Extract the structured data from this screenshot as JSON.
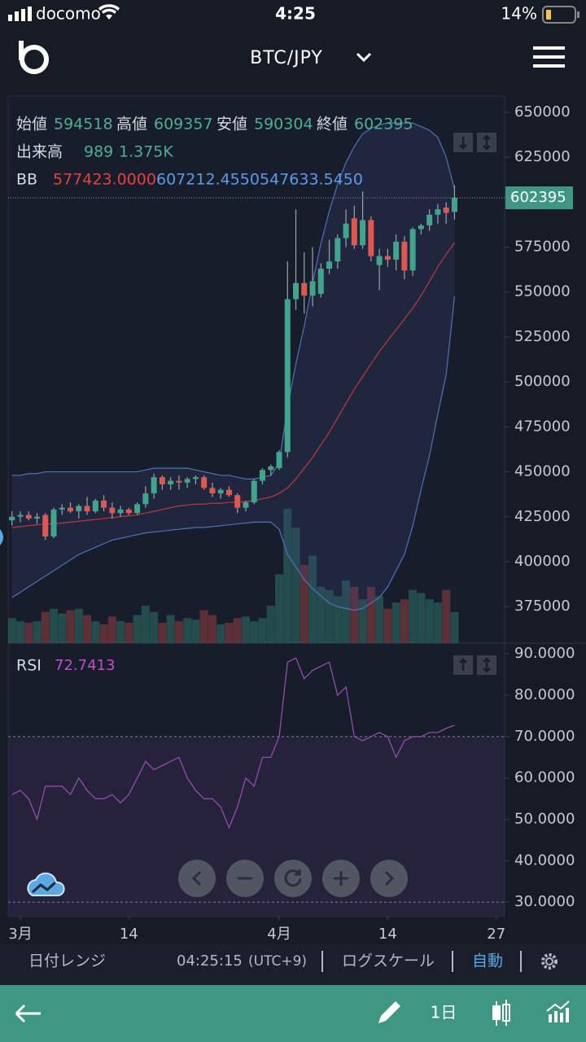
{
  "status_bar": {
    "carrier": "docomo",
    "time": "4:25",
    "battery": "14%"
  },
  "header": {
    "pair": "BTC/JPY"
  },
  "chart_data": [
    {
      "type": "candlestick",
      "open_label": "始値",
      "high_label": "高値",
      "low_label": "安値",
      "close_label": "終値",
      "volume_label": "出来高",
      "volume_ma": "1.375K",
      "bb_label": "BB",
      "up_color": "#3fa58d",
      "down_color": "#e0574f",
      "xlim": [
        -0.46,
        59.0
      ],
      "xticks": [
        {
          "value": 1,
          "label": "3月"
        },
        {
          "value": 14,
          "label": "14"
        },
        {
          "value": 32,
          "label": "4月"
        },
        {
          "value": 45,
          "label": "14"
        },
        {
          "value": 58,
          "label": "27"
        }
      ],
      "ylim": [
        354700,
        659000
      ],
      "yticks": [
        650000,
        625000,
        600000,
        575000,
        550000,
        525000,
        500000,
        475000,
        450000,
        425000,
        400000,
        375000
      ],
      "volume_ylim": [
        0,
        17500
      ],
      "open": [
        423000,
        425000,
        426000,
        424000,
        426000,
        414000,
        429000,
        430000,
        428000,
        431000,
        428000,
        434000,
        430000,
        427000,
        429000,
        427000,
        432000,
        438000,
        447000,
        443000,
        445000,
        444000,
        446000,
        447000,
        441000,
        438000,
        440000,
        437000,
        430000,
        433000,
        445000,
        451000,
        452000,
        461000,
        546000,
        555000,
        548000,
        549000,
        563000,
        567000,
        580000,
        591000,
        576000,
        590000,
        565000,
        570000,
        568000,
        578000,
        562000,
        585000,
        587000,
        593000,
        597000,
        594518
      ],
      "high": [
        428000,
        428000,
        428000,
        427000,
        427000,
        430000,
        432000,
        433000,
        432000,
        436000,
        435000,
        437000,
        433000,
        431000,
        430000,
        433000,
        442000,
        449000,
        448000,
        447000,
        448000,
        447000,
        448000,
        448000,
        444000,
        441000,
        442000,
        438000,
        434000,
        446000,
        452000,
        454000,
        462000,
        567000,
        596000,
        572000,
        575000,
        566000,
        579000,
        582000,
        596000,
        598000,
        606000,
        592000,
        574000,
        574000,
        582000,
        581000,
        586000,
        588000,
        596000,
        599000,
        600000,
        609357
      ],
      "low": [
        420000,
        422000,
        423000,
        421000,
        412000,
        413000,
        426000,
        427000,
        424000,
        426000,
        427000,
        428000,
        424000,
        425000,
        426000,
        426000,
        430000,
        435000,
        440000,
        440000,
        440000,
        441000,
        443000,
        440000,
        436000,
        435000,
        436000,
        427000,
        428000,
        432000,
        443000,
        448000,
        451000,
        458000,
        540000,
        538000,
        542000,
        547000,
        560000,
        563000,
        575000,
        574000,
        574000,
        567000,
        551000,
        564000,
        562000,
        557000,
        559000,
        582000,
        584000,
        588000,
        588000,
        590304
      ],
      "close": [
        425000,
        426000,
        424000,
        425000,
        414000,
        429000,
        430000,
        428000,
        431000,
        428000,
        434000,
        430000,
        427000,
        429000,
        427000,
        432000,
        438000,
        447000,
        443000,
        445000,
        444000,
        446000,
        447000,
        441000,
        438000,
        440000,
        437000,
        430000,
        433000,
        445000,
        451000,
        453000,
        461000,
        546000,
        555000,
        548000,
        556000,
        563000,
        567000,
        580000,
        588000,
        576000,
        590000,
        570000,
        570000,
        568000,
        578000,
        562000,
        585000,
        587000,
        593000,
        596000,
        594000,
        602395
      ],
      "volume": [
        800,
        700,
        650,
        700,
        1000,
        1100,
        950,
        1050,
        1100,
        900,
        700,
        600,
        850,
        700,
        650,
        900,
        1200,
        1000,
        650,
        900,
        700,
        800,
        750,
        1050,
        900,
        600,
        650,
        800,
        850,
        700,
        800,
        1200,
        2200,
        4300,
        3700,
        2500,
        2800,
        1800,
        1700,
        1500,
        2000,
        1800,
        1400,
        1800,
        1500,
        1100,
        1300,
        1400,
        1700,
        1600,
        1400,
        1300,
        1700,
        989
      ],
      "bb_middle": {
        "color": "#c0393b",
        "last_value_label": "577423.0000",
        "values": [
          419000,
          419500,
          420000,
          420500,
          421000,
          421000,
          421500,
          422000,
          422500,
          423000,
          423500,
          424000,
          424500,
          425000,
          425500,
          426000,
          427000,
          428000,
          429000,
          430000,
          431000,
          431500,
          432000,
          432000,
          432500,
          432500,
          433000,
          433000,
          433500,
          434000,
          435000,
          436000,
          438000,
          441000,
          446000,
          452000,
          458000,
          465000,
          472000,
          480000,
          488000,
          496000,
          503000,
          510000,
          517000,
          523000,
          529000,
          535000,
          541000,
          548000,
          556000,
          564000,
          571000,
          577423
        ]
      },
      "bb_upper": {
        "color": "#4d73b8",
        "last_value_label": "607212.4550",
        "values": [
          448000,
          448000,
          449000,
          449000,
          450000,
          450000,
          450000,
          450000,
          450000,
          450000,
          450000,
          450000,
          450000,
          450000,
          450000,
          450000,
          451000,
          452000,
          452000,
          452000,
          452000,
          452000,
          451000,
          450000,
          449000,
          448000,
          448000,
          447000,
          446000,
          446000,
          447000,
          448000,
          455000,
          486000,
          510000,
          531000,
          555000,
          577000,
          595000,
          610000,
          622000,
          631000,
          638000,
          641000,
          643000,
          644000,
          644000,
          644000,
          644000,
          642000,
          640000,
          636000,
          625000,
          607212.455
        ]
      },
      "bb_lower": {
        "color": "#4d73b8",
        "last_value_label": "547633.5450",
        "values": [
          380000,
          383000,
          386000,
          389000,
          392000,
          395000,
          398000,
          401000,
          404000,
          406000,
          408000,
          410000,
          412000,
          413000,
          414000,
          415000,
          416000,
          416500,
          417000,
          417500,
          418000,
          418500,
          419000,
          419000,
          419500,
          420000,
          420500,
          421000,
          421500,
          422000,
          422000,
          422000,
          418000,
          404000,
          397000,
          390000,
          385000,
          381000,
          377000,
          375000,
          374000,
          373000,
          374000,
          377000,
          380000,
          386000,
          395000,
          404000,
          420000,
          440000,
          459000,
          482000,
          504000,
          547633.545
        ]
      }
    },
    {
      "type": "line",
      "name": "RSI",
      "color": "#9c4fb8",
      "last_value_label": "72.7413",
      "ylim": [
        26.7,
        92.6
      ],
      "overbought": 70,
      "oversold": 30,
      "yticks": [
        {
          "value": 90,
          "label": "90.0000"
        },
        {
          "value": 80,
          "label": "80.0000"
        },
        {
          "value": 70,
          "label": "70.0000"
        },
        {
          "value": 60,
          "label": "60.0000"
        },
        {
          "value": 50,
          "label": "50.0000"
        },
        {
          "value": 40,
          "label": "40.0000"
        },
        {
          "value": 30,
          "label": "30.0000"
        }
      ],
      "values": [
        56,
        57,
        55,
        50,
        58,
        58,
        58,
        56,
        60,
        57,
        55,
        55,
        56,
        54,
        56,
        60,
        64,
        62,
        63,
        64,
        65,
        60,
        57,
        55,
        55,
        53,
        48,
        53,
        60,
        58,
        65,
        65,
        70,
        88,
        89,
        84,
        86,
        87,
        88,
        80,
        82,
        70,
        69,
        70,
        71,
        70,
        65,
        69,
        70,
        70,
        71,
        71,
        72,
        72.7413
      ]
    }
  ],
  "toolbar": {
    "range": "日付レンジ",
    "clock": "04:25:15",
    "timezone": "(UTC+9)",
    "log_scale": "ログスケール",
    "auto": "自動"
  },
  "nav": {
    "interval": "1日"
  }
}
